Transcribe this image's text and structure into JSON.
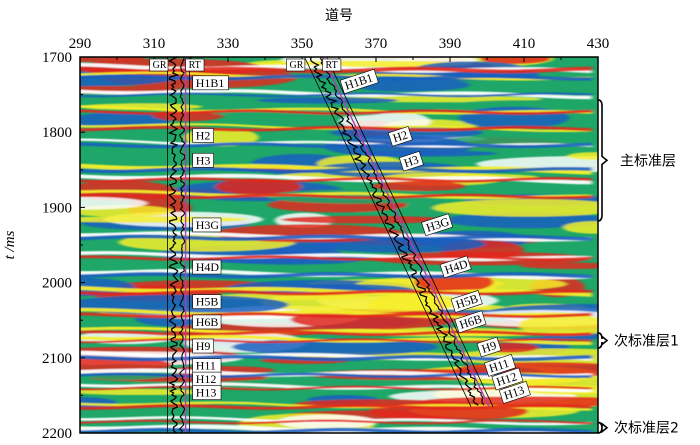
{
  "figure": {
    "xlabel": "道号",
    "ylabel": "t /ms",
    "x_ticks": [
      "290",
      "310",
      "330",
      "350",
      "370",
      "390",
      "410",
      "430"
    ],
    "y_ticks": [
      "1700",
      "1800",
      "1900",
      "2000",
      "2100",
      "2200"
    ],
    "x_range": [
      290,
      430
    ],
    "y_range": [
      1700,
      2200
    ]
  },
  "wells": [
    {
      "gr_label": "GR",
      "rt_label": "RT",
      "trace_top": 318,
      "trace_bottom": 318
    },
    {
      "gr_label": "GR",
      "rt_label": "RT",
      "trace_top": 355,
      "trace_bottom": 400
    }
  ],
  "horizons": [
    {
      "name": "H1B1",
      "time": 1733,
      "trace_left": 321,
      "trace_right": 365
    },
    {
      "name": "H2",
      "time": 1803,
      "trace_left": 321,
      "trace_right": 378
    },
    {
      "name": "H3",
      "time": 1836,
      "trace_left": 321,
      "trace_right": 381
    },
    {
      "name": "H3G",
      "time": 1922,
      "trace_left": 321,
      "trace_right": 387
    },
    {
      "name": "H4D",
      "time": 1978,
      "trace_left": 321,
      "trace_right": 392
    },
    {
      "name": "H5B",
      "time": 2024,
      "trace_left": 321,
      "trace_right": 395
    },
    {
      "name": "H6B",
      "time": 2051,
      "trace_left": 321,
      "trace_right": 396
    },
    {
      "name": "H9",
      "time": 2083,
      "trace_left": 321,
      "trace_right": 402
    },
    {
      "name": "H11",
      "time": 2109,
      "trace_left": 321,
      "trace_right": 404
    },
    {
      "name": "H12",
      "time": 2127,
      "trace_left": 321,
      "trace_right": 406
    },
    {
      "name": "H13",
      "time": 2145,
      "trace_left": 321,
      "trace_right": 408
    }
  ],
  "marker_beds": [
    {
      "label": "主标准层",
      "time_top": 1757,
      "time_bottom": 1918
    },
    {
      "label": "次标准层1",
      "time_top": 2067,
      "time_bottom": 2087
    },
    {
      "label": "次标准层2",
      "time_top": 2186,
      "time_bottom": 2200
    }
  ],
  "colors": {
    "yellow": "#f4ee2a",
    "green": "#1ea768",
    "blue": "#1a5fc0",
    "red": "#e2281c",
    "white": "#ffffff",
    "curve": "#000000",
    "purple": "#b03bb5"
  }
}
